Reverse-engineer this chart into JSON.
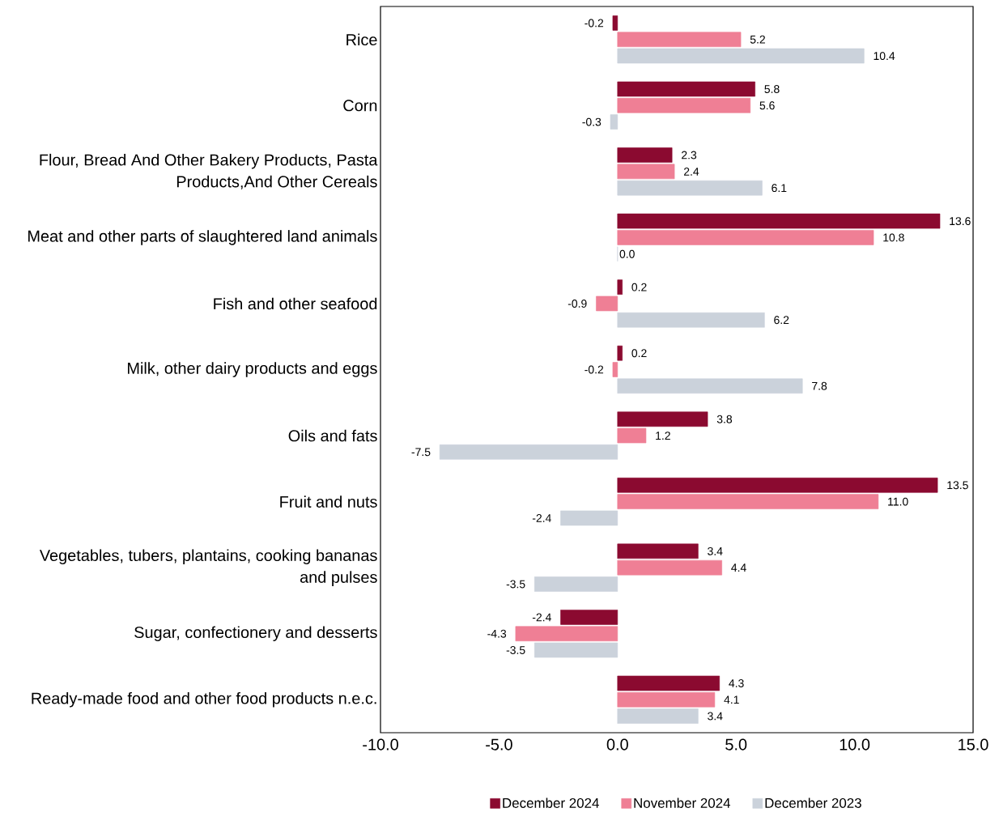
{
  "chart_data": {
    "type": "bar",
    "orientation": "horizontal",
    "categories": [
      "Rice",
      "Corn",
      "Flour, Bread And Other Bakery Products, Pasta Products,And Other Cereals",
      "Meat and other parts of slaughtered land animals",
      "Fish and other seafood",
      "Milk, other dairy products and eggs",
      "Oils and fats",
      "Fruit and nuts",
      "Vegetables, tubers, plantains, cooking bananas and pulses",
      "Sugar, confectionery and desserts",
      "Ready-made food and other food products n.e.c."
    ],
    "series": [
      {
        "name": "December 2024",
        "color": "#8b0a30",
        "values": [
          -0.2,
          5.8,
          2.3,
          13.6,
          0.2,
          0.2,
          3.8,
          13.5,
          3.4,
          -2.4,
          4.3
        ],
        "value_labels": [
          "-0.2",
          "5.8",
          "2.3",
          "13.6",
          "0.2",
          "0.2",
          "3.8",
          "13.5",
          "3.4",
          "-2.4",
          "4.3"
        ]
      },
      {
        "name": "November 2024",
        "color": "#ef7f95",
        "values": [
          5.2,
          5.6,
          2.4,
          10.8,
          -0.9,
          -0.2,
          1.2,
          11.0,
          4.4,
          -4.3,
          4.1
        ],
        "value_labels": [
          "5.2",
          "5.6",
          "2.4",
          "10.8",
          "-0.9",
          "-0.2",
          "1.2",
          "11.0",
          "4.4",
          "-4.3",
          "4.1"
        ]
      },
      {
        "name": "December 2023",
        "color": "#cbd2db",
        "values": [
          10.4,
          -0.3,
          6.1,
          0.0,
          6.2,
          7.8,
          -7.5,
          -2.4,
          -3.5,
          -3.5,
          3.4
        ],
        "value_labels": [
          "10.4",
          "-0.3",
          "6.1",
          "0.0",
          "6.2",
          "7.8",
          "-7.5",
          "-2.4",
          "-3.5",
          "-3.5",
          "3.4"
        ]
      }
    ],
    "xlim": [
      -10,
      15
    ],
    "xticks": [
      {
        "value": -10,
        "label": "-10.0"
      },
      {
        "value": -5,
        "label": "-5.0"
      },
      {
        "value": 0,
        "label": "0.0"
      },
      {
        "value": 5,
        "label": "5.0"
      },
      {
        "value": 10,
        "label": "10.0"
      },
      {
        "value": 15,
        "label": "15.0"
      }
    ],
    "grid": false,
    "legend": "bottom"
  }
}
